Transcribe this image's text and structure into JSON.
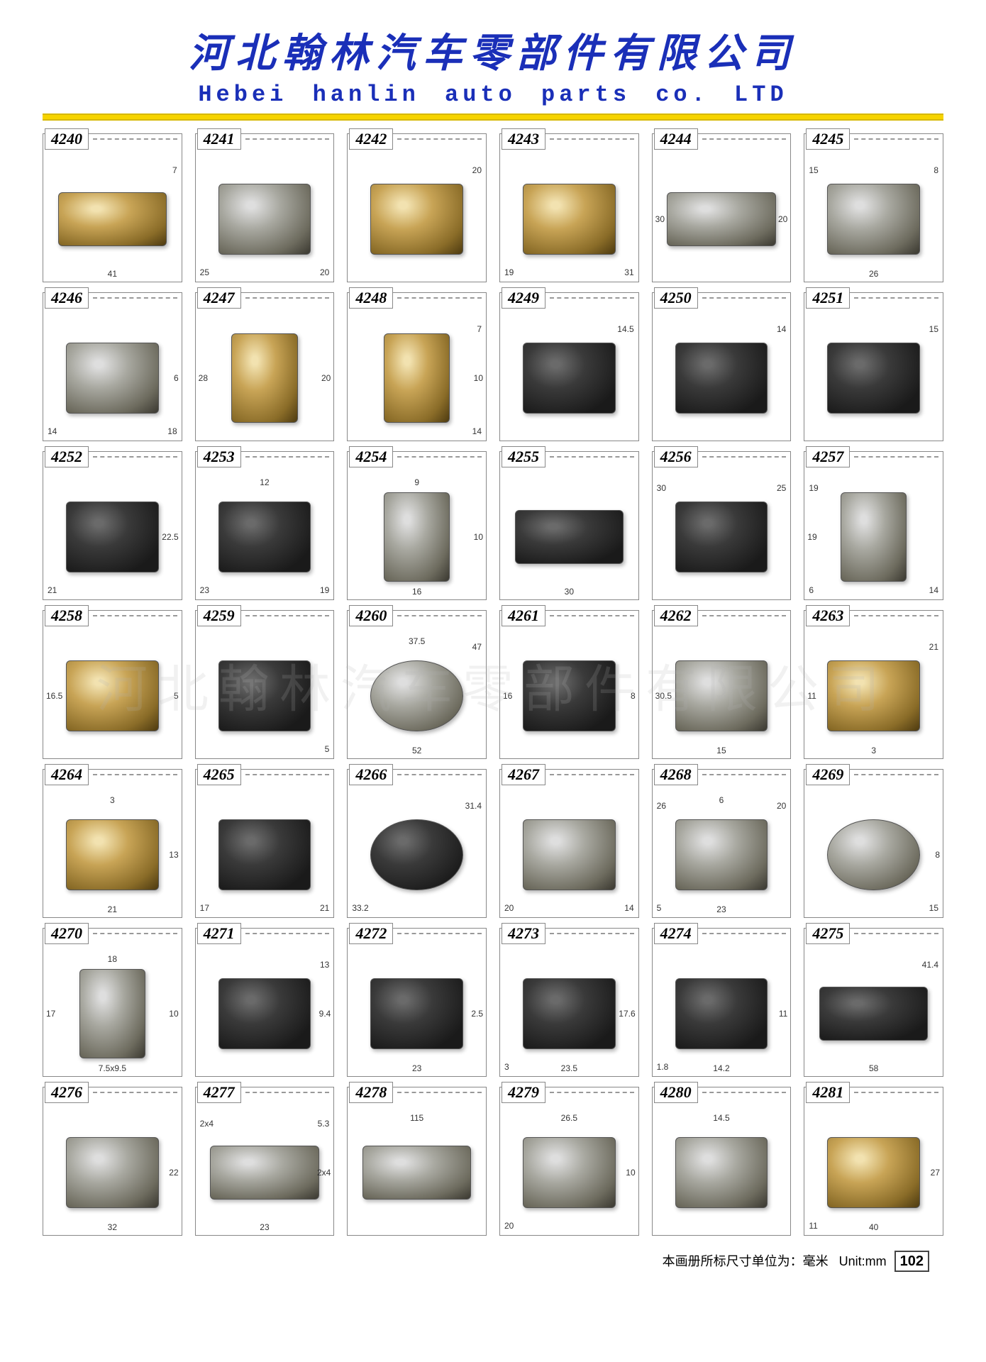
{
  "header": {
    "chinese_title": "河北翰林汽车零部件有限公司",
    "english_title": "Hebei hanlin auto parts co. LTD",
    "title_color": "#1a2fb8",
    "chinese_fontsize": 56,
    "english_fontsize": 32,
    "yellow_bar_color": "#f7d400"
  },
  "watermark": "河北翰林汽车零部件有限公司",
  "grid": {
    "columns": 6,
    "rows": 7,
    "cell_border_color": "#888888",
    "dim_line_color": "#cc66aa",
    "dim_fontsize": 12
  },
  "parts": [
    {
      "number": "4240",
      "color": "brass",
      "shape": "wide",
      "dims": [
        {
          "v": "7",
          "pos": "top-right"
        },
        {
          "v": "41",
          "pos": "bottom"
        }
      ]
    },
    {
      "number": "4241",
      "color": "steel",
      "shape": "rect",
      "dims": [
        {
          "v": "25",
          "pos": "bottom-left"
        },
        {
          "v": "20",
          "pos": "bottom-right"
        }
      ]
    },
    {
      "number": "4242",
      "color": "brass",
      "shape": "rect",
      "dims": [
        {
          "v": "20",
          "pos": "top-right"
        }
      ]
    },
    {
      "number": "4243",
      "color": "brass",
      "shape": "rect",
      "dims": [
        {
          "v": "19",
          "pos": "bottom-left"
        },
        {
          "v": "31",
          "pos": "bottom-right"
        }
      ]
    },
    {
      "number": "4244",
      "color": "steel",
      "shape": "wide",
      "dims": [
        {
          "v": "30",
          "pos": "left"
        },
        {
          "v": "20",
          "pos": "right"
        }
      ]
    },
    {
      "number": "4245",
      "color": "steel",
      "shape": "rect",
      "dims": [
        {
          "v": "8",
          "pos": "top-right"
        },
        {
          "v": "15",
          "pos": "top-left"
        },
        {
          "v": "26",
          "pos": "bottom"
        }
      ]
    },
    {
      "number": "4246",
      "color": "steel",
      "shape": "rect",
      "dims": [
        {
          "v": "14",
          "pos": "bottom-left"
        },
        {
          "v": "18",
          "pos": "bottom-right"
        },
        {
          "v": "6",
          "pos": "right"
        }
      ]
    },
    {
      "number": "4247",
      "color": "brass",
      "shape": "tall",
      "dims": [
        {
          "v": "28",
          "pos": "left"
        },
        {
          "v": "20",
          "pos": "right"
        }
      ]
    },
    {
      "number": "4248",
      "color": "brass",
      "shape": "tall",
      "dims": [
        {
          "v": "7",
          "pos": "top-right"
        },
        {
          "v": "10",
          "pos": "right"
        },
        {
          "v": "14",
          "pos": "bottom-right"
        }
      ]
    },
    {
      "number": "4249",
      "color": "dark",
      "shape": "rect",
      "dims": [
        {
          "v": "14.5",
          "pos": "top-right"
        }
      ]
    },
    {
      "number": "4250",
      "color": "dark",
      "shape": "rect",
      "dims": [
        {
          "v": "14",
          "pos": "top-right"
        }
      ]
    },
    {
      "number": "4251",
      "color": "dark",
      "shape": "rect",
      "dims": [
        {
          "v": "15",
          "pos": "top-right"
        }
      ]
    },
    {
      "number": "4252",
      "color": "dark",
      "shape": "rect",
      "dims": [
        {
          "v": "22.5",
          "pos": "right"
        },
        {
          "v": "21",
          "pos": "bottom-left"
        }
      ]
    },
    {
      "number": "4253",
      "color": "dark",
      "shape": "rect",
      "dims": [
        {
          "v": "12",
          "pos": "top"
        },
        {
          "v": "23",
          "pos": "bottom-left"
        },
        {
          "v": "19",
          "pos": "bottom-right"
        }
      ]
    },
    {
      "number": "4254",
      "color": "steel",
      "shape": "tall",
      "dims": [
        {
          "v": "9",
          "pos": "top"
        },
        {
          "v": "10",
          "pos": "right"
        },
        {
          "v": "16",
          "pos": "bottom"
        }
      ]
    },
    {
      "number": "4255",
      "color": "dark",
      "shape": "wide",
      "dims": [
        {
          "v": "30",
          "pos": "bottom"
        }
      ]
    },
    {
      "number": "4256",
      "color": "dark",
      "shape": "rect",
      "dims": [
        {
          "v": "30",
          "pos": "top-left"
        },
        {
          "v": "25",
          "pos": "top-right"
        }
      ]
    },
    {
      "number": "4257",
      "color": "steel",
      "shape": "tall",
      "dims": [
        {
          "v": "19",
          "pos": "top-left"
        },
        {
          "v": "19",
          "pos": "left"
        },
        {
          "v": "6",
          "pos": "bottom-left"
        },
        {
          "v": "14",
          "pos": "bottom-right"
        }
      ]
    },
    {
      "number": "4258",
      "color": "brass",
      "shape": "rect",
      "dims": [
        {
          "v": "16.5",
          "pos": "left"
        },
        {
          "v": "5",
          "pos": "right"
        }
      ]
    },
    {
      "number": "4259",
      "color": "dark",
      "shape": "rect",
      "dims": [
        {
          "v": "5",
          "pos": "bottom-right"
        }
      ]
    },
    {
      "number": "4260",
      "color": "steel",
      "shape": "round",
      "dims": [
        {
          "v": "37.5",
          "pos": "top"
        },
        {
          "v": "47",
          "pos": "top-right"
        },
        {
          "v": "52",
          "pos": "bottom"
        }
      ]
    },
    {
      "number": "4261",
      "color": "dark",
      "shape": "rect",
      "dims": [
        {
          "v": "16",
          "pos": "left"
        },
        {
          "v": "8",
          "pos": "right"
        }
      ]
    },
    {
      "number": "4262",
      "color": "steel",
      "shape": "rect",
      "dims": [
        {
          "v": "30.5",
          "pos": "left"
        },
        {
          "v": "15",
          "pos": "bottom"
        }
      ]
    },
    {
      "number": "4263",
      "color": "brass",
      "shape": "rect",
      "dims": [
        {
          "v": "21",
          "pos": "top-right"
        },
        {
          "v": "11",
          "pos": "left"
        },
        {
          "v": "3",
          "pos": "bottom"
        }
      ]
    },
    {
      "number": "4264",
      "color": "brass",
      "shape": "rect",
      "dims": [
        {
          "v": "3",
          "pos": "top"
        },
        {
          "v": "13",
          "pos": "right"
        },
        {
          "v": "21",
          "pos": "bottom"
        }
      ]
    },
    {
      "number": "4265",
      "color": "dark",
      "shape": "rect",
      "dims": [
        {
          "v": "17",
          "pos": "bottom-left"
        },
        {
          "v": "21",
          "pos": "bottom-right"
        }
      ]
    },
    {
      "number": "4266",
      "color": "dark",
      "shape": "round",
      "dims": [
        {
          "v": "31.4",
          "pos": "top-right"
        },
        {
          "v": "33.2",
          "pos": "bottom-left"
        }
      ]
    },
    {
      "number": "4267",
      "color": "steel",
      "shape": "rect",
      "dims": [
        {
          "v": "20",
          "pos": "bottom-left"
        },
        {
          "v": "14",
          "pos": "bottom-right"
        }
      ]
    },
    {
      "number": "4268",
      "color": "steel",
      "shape": "rect",
      "dims": [
        {
          "v": "6",
          "pos": "top"
        },
        {
          "v": "26",
          "pos": "top-left"
        },
        {
          "v": "20",
          "pos": "top-right"
        },
        {
          "v": "5",
          "pos": "bottom-left"
        },
        {
          "v": "23",
          "pos": "bottom"
        }
      ]
    },
    {
      "number": "4269",
      "color": "steel",
      "shape": "round",
      "dims": [
        {
          "v": "8",
          "pos": "right"
        },
        {
          "v": "15",
          "pos": "bottom-right"
        }
      ]
    },
    {
      "number": "4270",
      "color": "steel",
      "shape": "tall",
      "dims": [
        {
          "v": "18",
          "pos": "top"
        },
        {
          "v": "17",
          "pos": "left"
        },
        {
          "v": "10",
          "pos": "right"
        },
        {
          "v": "7.5x9.5",
          "pos": "bottom"
        }
      ]
    },
    {
      "number": "4271",
      "color": "dark",
      "shape": "rect",
      "dims": [
        {
          "v": "13",
          "pos": "top-right"
        },
        {
          "v": "9.4",
          "pos": "right"
        }
      ]
    },
    {
      "number": "4272",
      "color": "dark",
      "shape": "rect",
      "dims": [
        {
          "v": "2.5",
          "pos": "right"
        },
        {
          "v": "23",
          "pos": "bottom"
        }
      ]
    },
    {
      "number": "4273",
      "color": "dark",
      "shape": "rect",
      "dims": [
        {
          "v": "17.6",
          "pos": "right"
        },
        {
          "v": "3",
          "pos": "bottom-left"
        },
        {
          "v": "23.5",
          "pos": "bottom"
        }
      ]
    },
    {
      "number": "4274",
      "color": "dark",
      "shape": "rect",
      "dims": [
        {
          "v": "1.8",
          "pos": "bottom-left"
        },
        {
          "v": "11",
          "pos": "right"
        },
        {
          "v": "14.2",
          "pos": "bottom"
        }
      ]
    },
    {
      "number": "4275",
      "color": "dark",
      "shape": "wide",
      "dims": [
        {
          "v": "41.4",
          "pos": "top-right"
        },
        {
          "v": "58",
          "pos": "bottom"
        }
      ]
    },
    {
      "number": "4276",
      "color": "steel",
      "shape": "rect",
      "dims": [
        {
          "v": "22",
          "pos": "right"
        },
        {
          "v": "32",
          "pos": "bottom"
        }
      ]
    },
    {
      "number": "4277",
      "color": "steel",
      "shape": "wide",
      "dims": [
        {
          "v": "2x4",
          "pos": "top-left"
        },
        {
          "v": "2x4",
          "pos": "right"
        },
        {
          "v": "5.3",
          "pos": "top-right"
        },
        {
          "v": "23",
          "pos": "bottom"
        }
      ]
    },
    {
      "number": "4278",
      "color": "steel",
      "shape": "wide",
      "dims": [
        {
          "v": "115",
          "pos": "top"
        }
      ]
    },
    {
      "number": "4279",
      "color": "steel",
      "shape": "rect",
      "dims": [
        {
          "v": "26.5",
          "pos": "top"
        },
        {
          "v": "10",
          "pos": "right"
        },
        {
          "v": "20",
          "pos": "bottom-left"
        }
      ]
    },
    {
      "number": "4280",
      "color": "steel",
      "shape": "rect",
      "dims": [
        {
          "v": "14.5",
          "pos": "top"
        }
      ]
    },
    {
      "number": "4281",
      "color": "brass",
      "shape": "rect",
      "dims": [
        {
          "v": "27",
          "pos": "right"
        },
        {
          "v": "11",
          "pos": "bottom-left"
        },
        {
          "v": "40",
          "pos": "bottom"
        }
      ]
    }
  ],
  "footer": {
    "text_cn": "本画册所标尺寸单位为：毫米",
    "text_en": "Unit:mm",
    "page_number": "102"
  }
}
